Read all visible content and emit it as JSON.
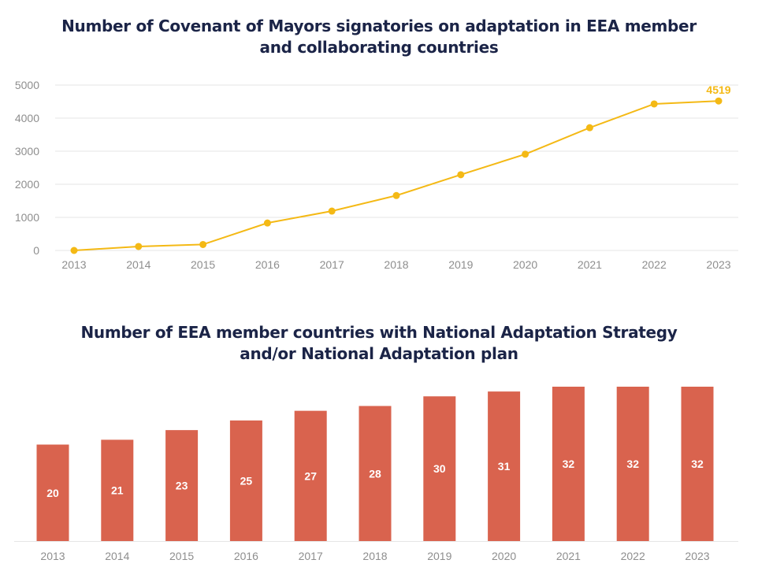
{
  "chart_data": [
    {
      "type": "line",
      "title": [
        "Number of Covenant of Mayors signatories on adaptation in EEA member",
        "and collaborating countries"
      ],
      "categories": [
        "2013",
        "2014",
        "2015",
        "2016",
        "2017",
        "2018",
        "2019",
        "2020",
        "2021",
        "2022",
        "2023"
      ],
      "values": [
        0,
        120,
        180,
        830,
        1190,
        1660,
        2290,
        2910,
        3710,
        4430,
        4519
      ],
      "y_ticks": [
        "0",
        "1000",
        "2000",
        "3000",
        "4000",
        "5000"
      ],
      "ylim": [
        0,
        5000
      ],
      "data_labels": [
        {
          "index": 10,
          "text": "4519"
        }
      ],
      "grid": true,
      "color": "#f4b915"
    },
    {
      "type": "bar",
      "title": [
        "Number of EEA member countries with National Adaptation Strategy",
        "and/or National Adaptation plan"
      ],
      "categories": [
        "2013",
        "2014",
        "2015",
        "2016",
        "2017",
        "2018",
        "2019",
        "2020",
        "2021",
        "2022",
        "2023"
      ],
      "values": [
        20,
        21,
        23,
        25,
        27,
        28,
        30,
        31,
        32,
        32,
        32
      ],
      "value_labels": [
        "20",
        "21",
        "23",
        "25",
        "27",
        "28",
        "30",
        "31",
        "32",
        "32",
        "32"
      ],
      "ylim": [
        0,
        32
      ],
      "color": "#d9634e",
      "label_color": "#ffffff"
    }
  ]
}
